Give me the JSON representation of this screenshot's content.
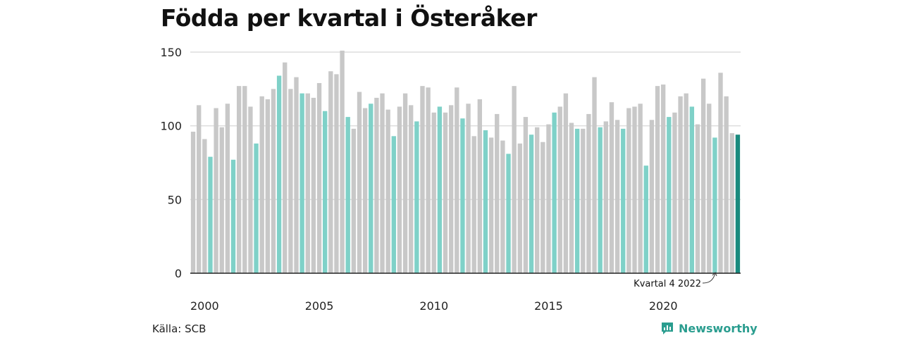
{
  "chart_data": {
    "type": "bar",
    "title": "Födda per kvartal i Österåker",
    "xlabel": "",
    "ylabel": "",
    "ylim": [
      0,
      150
    ],
    "yticks": [
      0,
      50,
      100,
      150
    ],
    "xticks": [
      "2000",
      "2005",
      "2010",
      "2015",
      "2020"
    ],
    "grid": "horizontal",
    "start": "2000 Q1",
    "end": "2023 Q4",
    "values": [
      96,
      114,
      91,
      79,
      112,
      99,
      115,
      77,
      127,
      127,
      113,
      88,
      120,
      118,
      125,
      134,
      143,
      125,
      133,
      122,
      122,
      119,
      129,
      110,
      137,
      135,
      151,
      106,
      98,
      123,
      112,
      115,
      119,
      122,
      111,
      93,
      113,
      122,
      114,
      103,
      127,
      126,
      109,
      113,
      109,
      114,
      126,
      105,
      115,
      93,
      118,
      97,
      92,
      108,
      90,
      81,
      127,
      88,
      106,
      94,
      99,
      89,
      101,
      109,
      113,
      122,
      102,
      98,
      98,
      108,
      133,
      99,
      103,
      116,
      104,
      98,
      112,
      113,
      115,
      73,
      104,
      127,
      128,
      106,
      109,
      120,
      122,
      113,
      101,
      132,
      115,
      92,
      136,
      120,
      95,
      94
    ],
    "colors": {
      "default": "#c8c8c8",
      "q4": "#7fd1c8",
      "latest": "#1a8a7e",
      "grid": "#dddddd",
      "axis": "#222222"
    },
    "annotation": {
      "label": "Kvartal 4 2022"
    }
  },
  "source": "Källa: SCB",
  "brand": "Newsworthy"
}
